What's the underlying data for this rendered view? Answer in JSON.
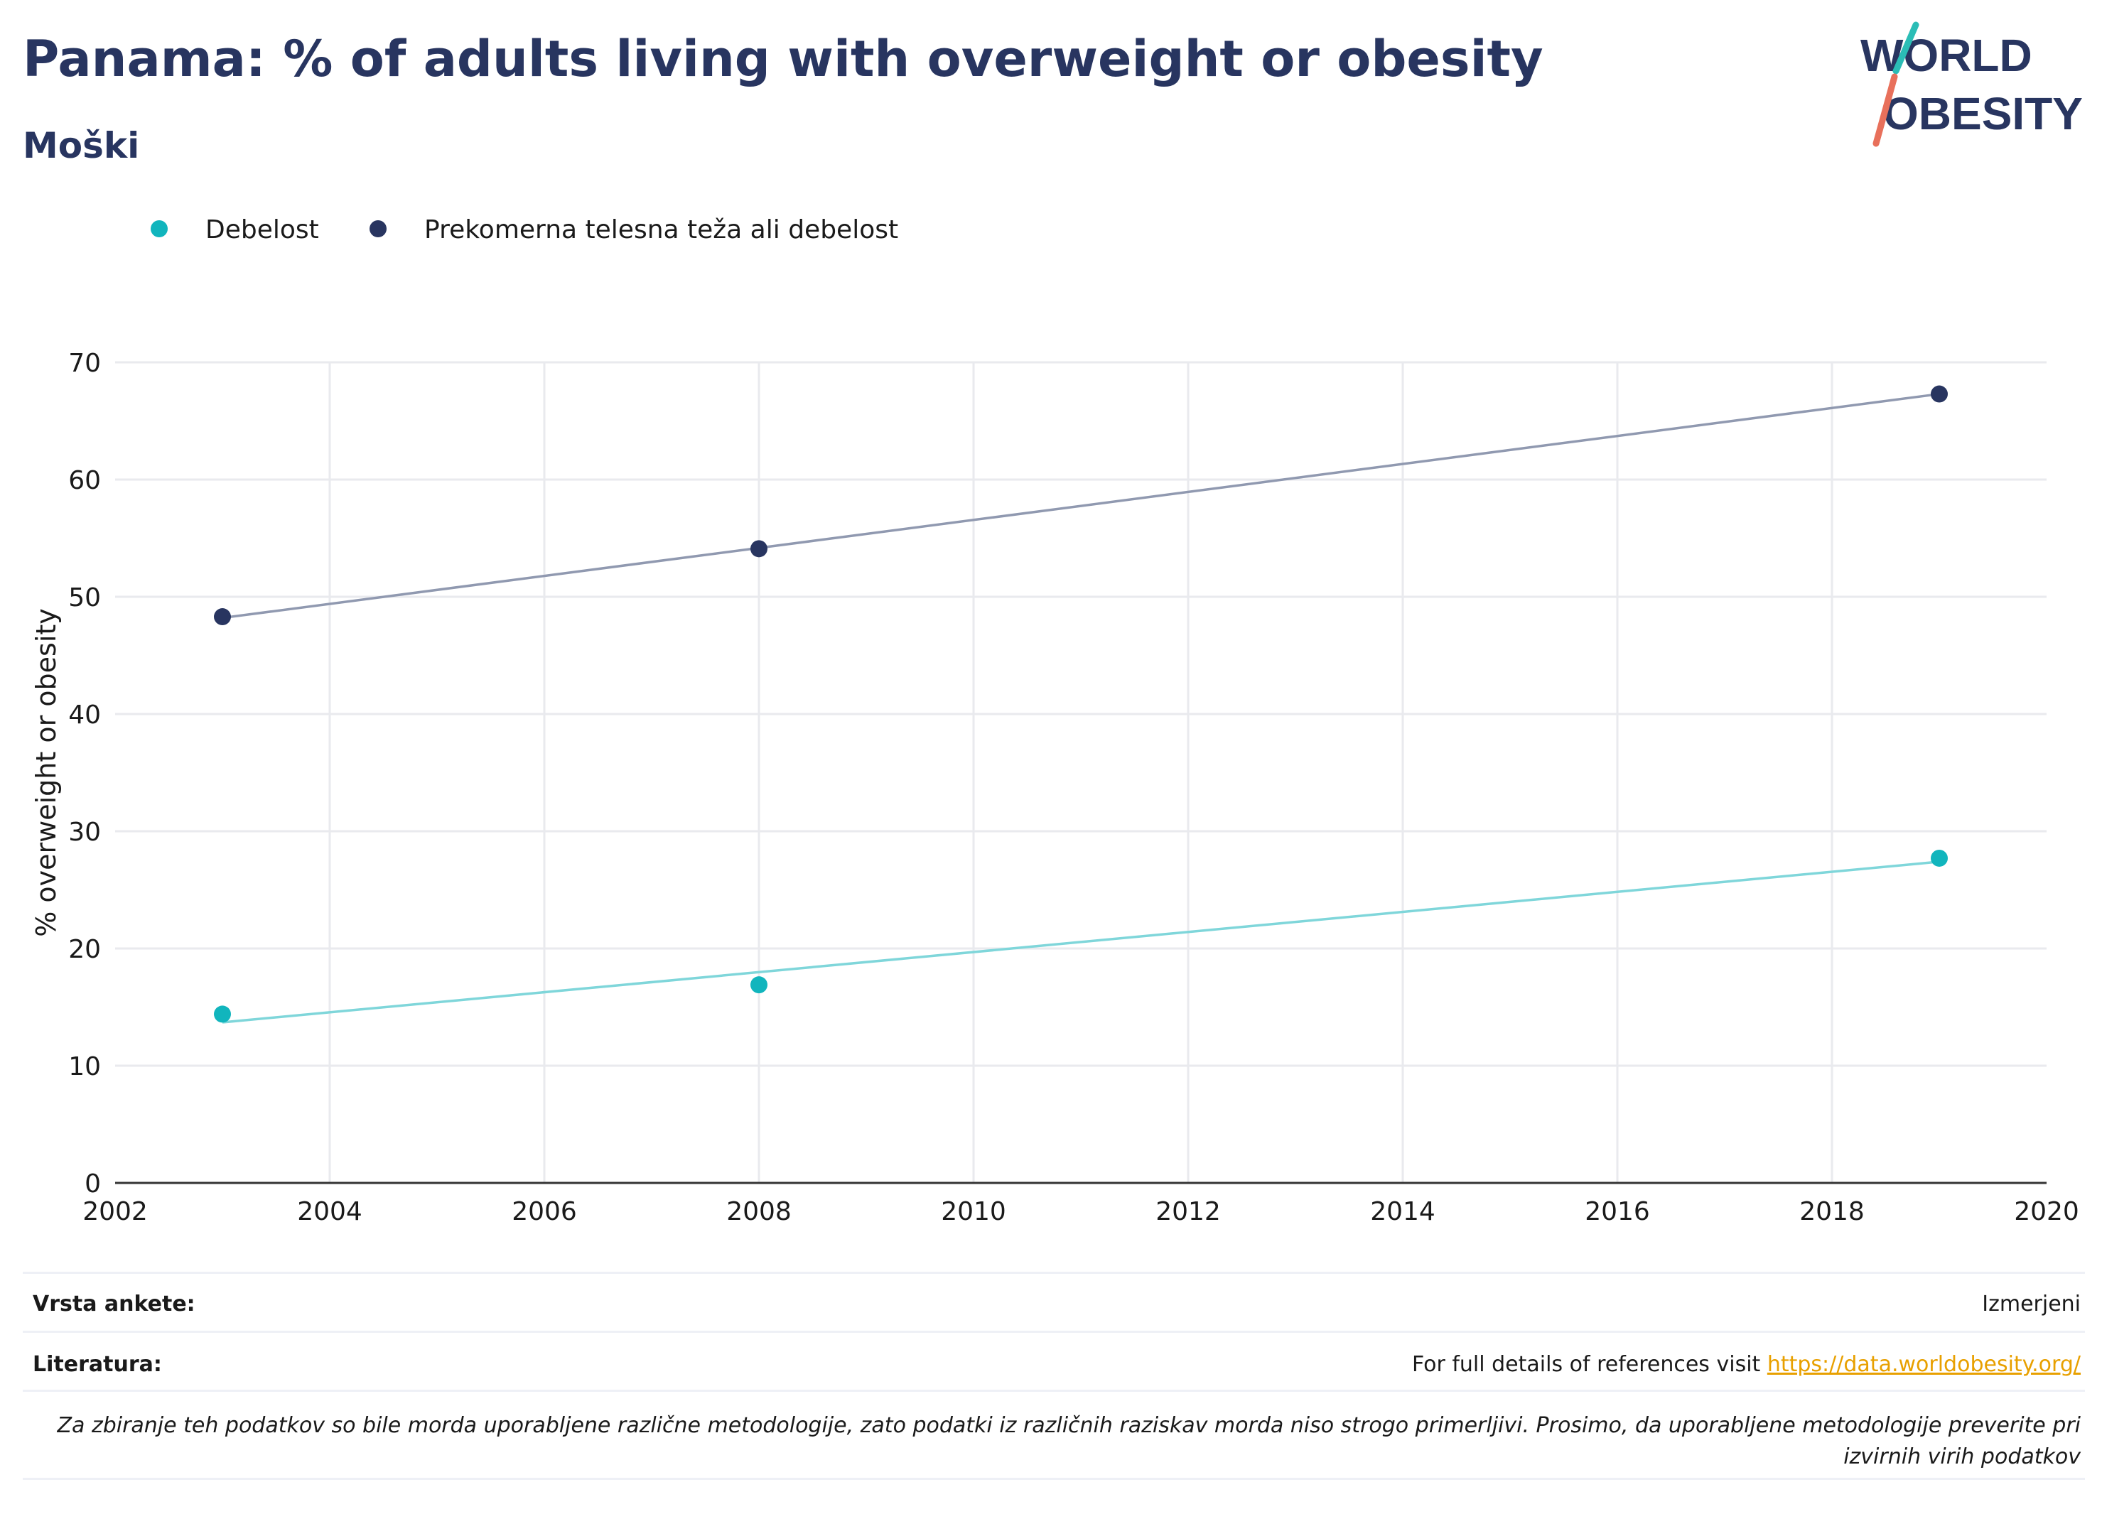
{
  "header": {
    "title": "Panama: % of adults living with overweight or obesity",
    "subtitle": "Moški"
  },
  "logo": {
    "line1": "WORLD",
    "line2": "OBESITY",
    "colors": {
      "text": "#283560",
      "slash_top": "#2bbdb6",
      "slash_bottom": "#e8705b"
    }
  },
  "chart_data": {
    "type": "scatter",
    "x": [
      2003,
      2008,
      2019
    ],
    "series": [
      {
        "name": "Debelost",
        "values": [
          14.4,
          16.9,
          27.7
        ],
        "trend": [
          13.7,
          27.4
        ],
        "color": "#11b5bd",
        "trend_color": "#7fd6da"
      },
      {
        "name": "Prekomerna telesna teža ali debelost",
        "values": [
          48.3,
          54.1,
          67.3
        ],
        "trend": [
          48.2,
          67.3
        ],
        "color": "#283560",
        "trend_color": "#9099b0"
      }
    ],
    "xlim": [
      2002,
      2020
    ],
    "ylim": [
      0,
      70
    ],
    "xticks": [
      2002,
      2004,
      2006,
      2008,
      2010,
      2012,
      2014,
      2016,
      2018,
      2020
    ],
    "yticks": [
      0,
      10,
      20,
      30,
      40,
      50,
      60,
      70
    ],
    "xlabel": "",
    "ylabel": "% overweight or obesity",
    "grid": true,
    "legend": "top-left"
  },
  "footer": {
    "survey_label": "Vrsta ankete:",
    "survey_value": "Izmerjeni",
    "refs_label": "Literatura:",
    "refs_text": "For full details of references visit ",
    "refs_link": "https://data.worldobesity.org/",
    "note": "Za zbiranje teh podatkov so bile morda uporabljene različne metodologije, zato podatki iz različnih raziskav morda niso strogo primerljivi. Prosimo, da uporabljene metodologije preverite pri izvirnih virih podatkov"
  }
}
